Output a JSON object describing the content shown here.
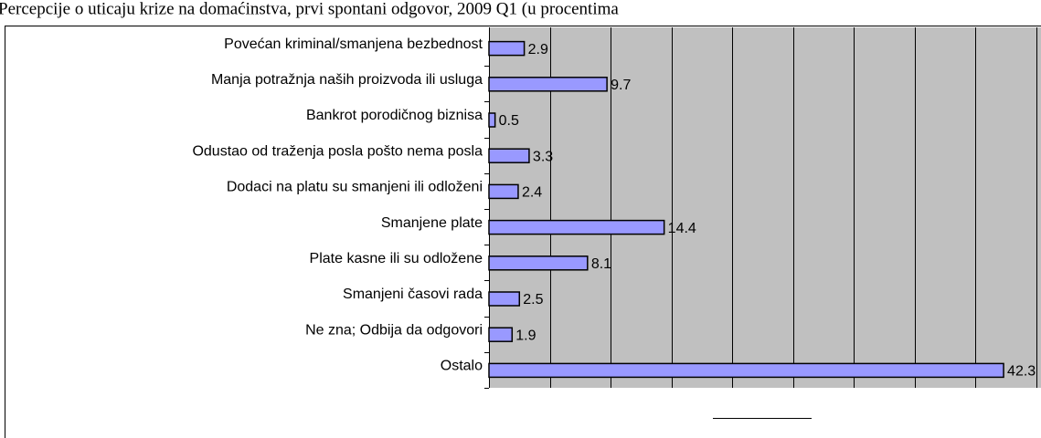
{
  "chart_data": {
    "type": "bar",
    "orientation": "horizontal",
    "title": "Percepcije o uticaju krize na domaćinstva, prvi spontani odgovor, 2009 Q1 (u procentima",
    "categories": [
      "Povećan kriminal/smanjena bezbednost",
      "Manja potražnja naših proizvoda ili usluga",
      "Bankrot porodičnog biznisa",
      "Odustao od traženja posla pošto nema posla",
      "Dodaci na platu su smanjeni ili odloženi",
      "Smanjene plate",
      "Plate kasne ili su odložene",
      "Smanjeni časovi rada",
      "Ne zna; Odbija da odgovori",
      "Ostalo"
    ],
    "values": [
      2.9,
      9.7,
      0.5,
      3.3,
      2.4,
      14.4,
      8.1,
      2.5,
      1.9,
      42.3
    ],
    "color": "#9999ff",
    "xlim": [
      0,
      45
    ],
    "grid_interval": 5,
    "grid": true
  }
}
